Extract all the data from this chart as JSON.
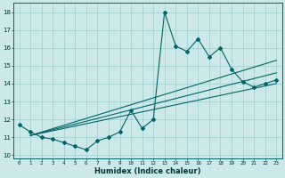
{
  "xlabel": "Humidex (Indice chaleur)",
  "bg_color": "#cce8e8",
  "grid_color": "#aad4d4",
  "line_color": "#006666",
  "xlim": [
    -0.5,
    23.5
  ],
  "ylim": [
    9.8,
    18.5
  ],
  "yticks": [
    10,
    11,
    12,
    13,
    14,
    15,
    16,
    17,
    18
  ],
  "xticks": [
    0,
    1,
    2,
    3,
    4,
    5,
    6,
    7,
    8,
    9,
    10,
    11,
    12,
    13,
    14,
    15,
    16,
    17,
    18,
    19,
    20,
    21,
    22,
    23
  ],
  "main_series_x": [
    0,
    1,
    2,
    3,
    4,
    5,
    6,
    7,
    8,
    9,
    10,
    11,
    12,
    13,
    14,
    15,
    16,
    17,
    18,
    19,
    20,
    21,
    22,
    23
  ],
  "main_series_y": [
    11.7,
    11.3,
    11.0,
    10.9,
    10.7,
    10.5,
    10.3,
    10.8,
    11.0,
    11.3,
    12.5,
    11.5,
    12.0,
    18.0,
    16.1,
    15.8,
    16.5,
    15.5,
    16.0,
    14.8,
    14.1,
    13.8,
    14.0,
    14.2
  ],
  "line1_x": [
    1,
    23
  ],
  "line1_y": [
    11.1,
    15.3
  ],
  "line2_x": [
    1,
    23
  ],
  "line2_y": [
    11.1,
    14.6
  ],
  "line3_x": [
    1,
    23
  ],
  "line3_y": [
    11.1,
    14.0
  ]
}
